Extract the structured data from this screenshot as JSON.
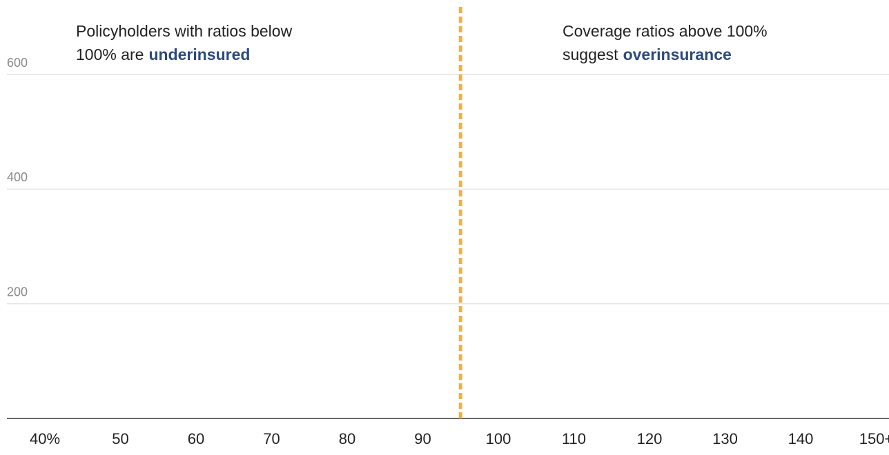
{
  "chart_data": {
    "type": "histogram",
    "categories": [
      "40%",
      "50",
      "60",
      "70",
      "80",
      "90",
      "100",
      "110",
      "120",
      "130",
      "140",
      "150+"
    ],
    "ylim": [
      0,
      600
    ],
    "yticks": [
      200,
      400,
      600
    ],
    "grid": true,
    "reference_line_color": "#efb04a",
    "annotations": [
      {
        "line1": "Policyholders with ratios below",
        "line2": "100% are",
        "emphasis": "underinsured"
      },
      {
        "line1": "Coverage ratios above 100%",
        "line2": "suggest",
        "emphasis": "overinsurance"
      }
    ],
    "emphasis_color": "#2c4a7c"
  }
}
